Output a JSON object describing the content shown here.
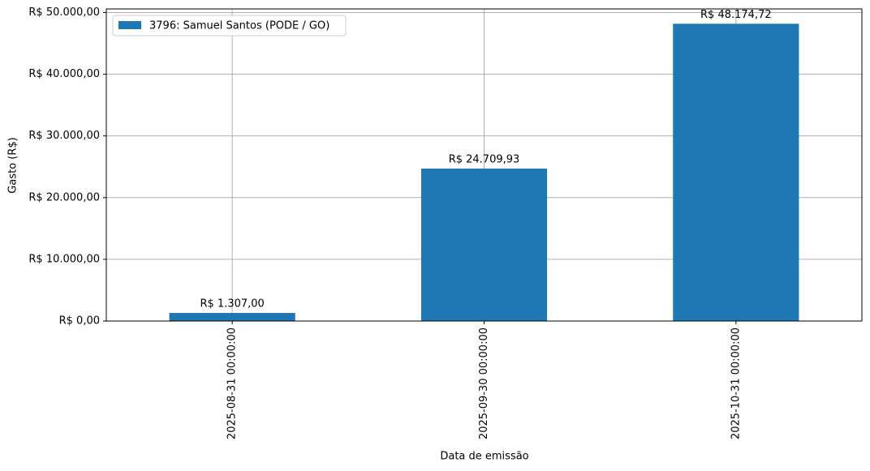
{
  "chart_data": {
    "type": "bar",
    "x_label": "Data de emissão",
    "y_label": "Gasto (R$)",
    "categories": [
      "2025-08-31 00:00:00",
      "2025-09-30 00:00:00",
      "2025-10-31 00:00:00"
    ],
    "series": [
      {
        "name": "3796: Samuel Santos (PODE / GO)",
        "color": "#1f77b4",
        "values": [
          1307.0,
          24709.93,
          48174.72
        ],
        "value_labels": [
          "R$ 1.307,00",
          "R$ 24.709,93",
          "R$ 48.174,72"
        ]
      }
    ],
    "ylim": [
      0,
      50583.46
    ],
    "yticks": [
      {
        "value": 0,
        "label": "R$ 0,00"
      },
      {
        "value": 10000,
        "label": "R$ 10.000,00"
      },
      {
        "value": 20000,
        "label": "R$ 20.000,00"
      },
      {
        "value": 30000,
        "label": "R$ 30.000,00"
      },
      {
        "value": 40000,
        "label": "R$ 40.000,00"
      },
      {
        "value": 50000,
        "label": "R$ 50.000,00"
      }
    ],
    "grid": true,
    "legend": "upper-left"
  }
}
